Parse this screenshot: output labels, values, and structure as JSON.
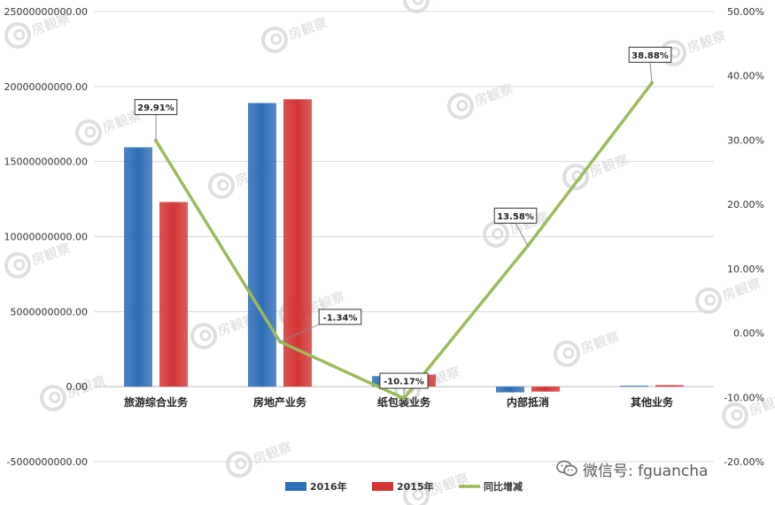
{
  "chart_data": {
    "type": "bar",
    "categories": [
      "旅游综合业务",
      "房地产业务",
      "纸包装业务",
      "内部抵消",
      "其他业务"
    ],
    "series": [
      {
        "name": "2016年",
        "type": "bar",
        "axis": "left",
        "color": "#2e6db8",
        "values": [
          15950000000,
          18900000000,
          700000000,
          -380000000,
          60000000
        ]
      },
      {
        "name": "2015年",
        "type": "bar",
        "axis": "left",
        "color": "#d33535",
        "values": [
          12300000000,
          19150000000,
          800000000,
          -330000000,
          100000000
        ]
      },
      {
        "name": "同比增减",
        "type": "line",
        "axis": "right",
        "color": "#9bbb59",
        "values": [
          29.91,
          -1.34,
          -10.17,
          13.58,
          38.88
        ]
      }
    ],
    "data_labels": [
      "29.91%",
      "-1.34%",
      "-10.17%",
      "13.58%",
      "38.88%"
    ],
    "y_left": {
      "range": [
        -5000000000,
        25000000000
      ],
      "ticks": [
        -5000000000,
        0,
        5000000000,
        10000000000,
        15000000000,
        20000000000,
        25000000000
      ],
      "tick_labels": [
        "-5000000000.00",
        "0.00",
        "5000000000.00",
        "10000000000.00",
        "15000000000.00",
        "20000000000.00",
        "25000000000.00"
      ]
    },
    "y_right": {
      "range": [
        -20,
        50
      ],
      "ticks": [
        -20,
        -10,
        0,
        10,
        20,
        30,
        40,
        50
      ],
      "tick_labels": [
        "-20.00%",
        "-10.00%",
        "0.00%",
        "10.00%",
        "20.00%",
        "30.00%",
        "40.00%",
        "50.00%"
      ]
    },
    "grid": true,
    "legend_position": "bottom"
  },
  "watermark": {
    "text": "房観察"
  },
  "wechat": {
    "text": "微信号: fguancha",
    "icon": "wechat-icon"
  }
}
